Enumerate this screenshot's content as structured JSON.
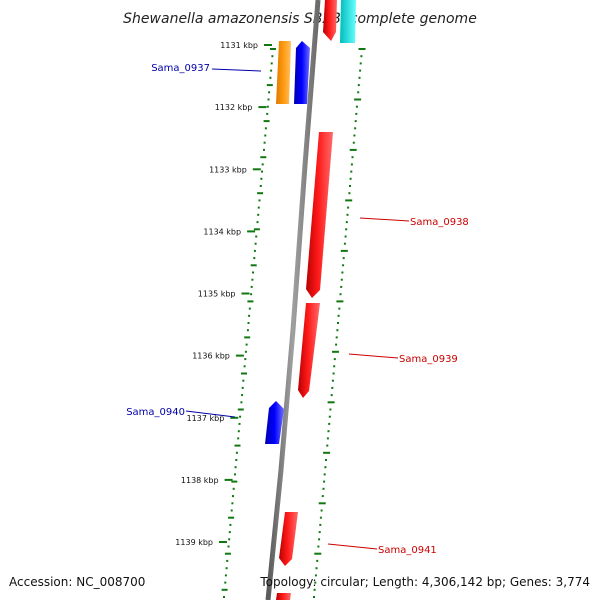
{
  "title": "Shewanella amazonensis SB2B, complete genome",
  "footer": {
    "accession": "Accession: NC_008700",
    "stats": "Topology: circular; Length: 4,306,142 bp; Genes: 3,774"
  },
  "ticks": [
    "1131 kbp",
    "1132 kbp",
    "1133 kbp",
    "1134 kbp",
    "1135 kbp",
    "1136 kbp",
    "1137 kbp",
    "1138 kbp",
    "1139 kbp"
  ],
  "gene_labels": [
    {
      "text": "Sama_0937",
      "color": "#0000aa"
    },
    {
      "text": "Sama_0938",
      "color": "#cc0000"
    },
    {
      "text": "Sama_0939",
      "color": "#cc0000"
    },
    {
      "text": "Sama_0940",
      "color": "#0000aa"
    },
    {
      "text": "Sama_0941",
      "color": "#cc0000"
    }
  ],
  "colors": {
    "forward_cds": "#ff0000",
    "reverse_cds": "#0000ff",
    "other_feature": "#ff9900",
    "rna_feature": "#00e5e5",
    "backbone": "#808080",
    "gc_dots": "#117711"
  }
}
